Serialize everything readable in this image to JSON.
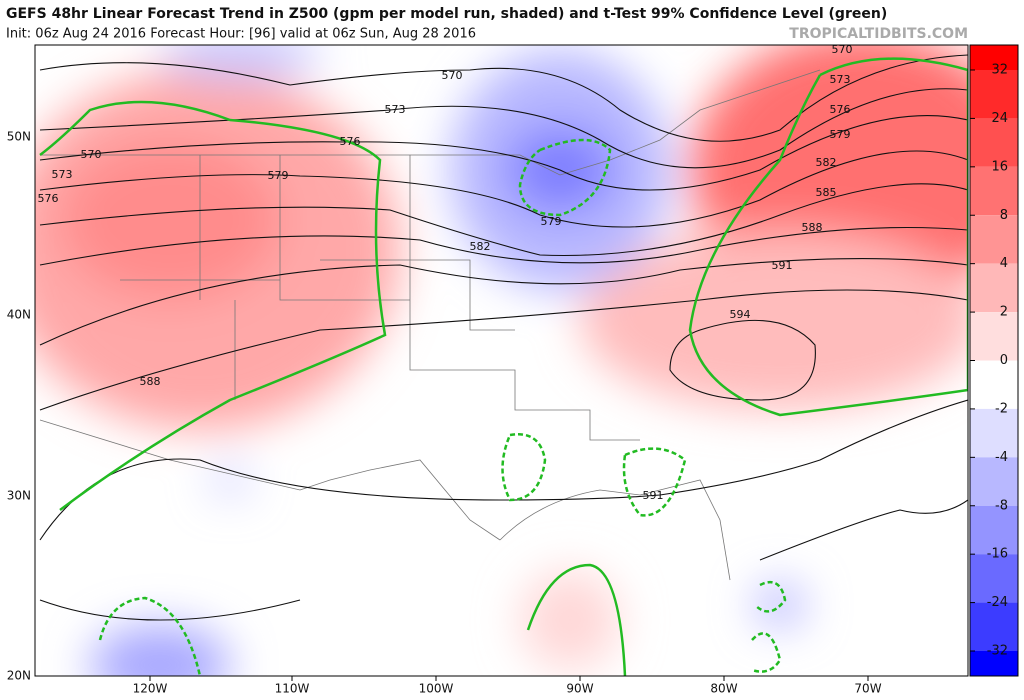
{
  "header": {
    "title": "GEFS 48hr Linear Forecast Trend in Z500 (gpm per model run, shaded) and t-Test 99% Confidence Level (green)",
    "subtitle": "Init: 06z Aug 24 2016   Forecast Hour: [96]   valid at 06z Sun, Aug 28 2016",
    "watermark": "TROPICALTIDBITS.COM"
  },
  "map": {
    "lat_labels": [
      "50N",
      "40N",
      "30N",
      "20N"
    ],
    "lon_labels": [
      "120W",
      "110W",
      "100W",
      "90W",
      "80W",
      "70W"
    ],
    "contour_labels": [
      "570",
      "573",
      "576",
      "579",
      "570",
      "573",
      "576",
      "582",
      "579",
      "588",
      "570",
      "573",
      "576",
      "579",
      "582",
      "585",
      "588",
      "591",
      "594",
      "591"
    ]
  },
  "colorbar": {
    "ticks": [
      32,
      24,
      16,
      8,
      4,
      2,
      0,
      -2,
      -4,
      -8,
      -16,
      -24,
      -32
    ],
    "colors": [
      "#ff0000",
      "#ff2a2a",
      "#ff5050",
      "#ff7272",
      "#ff9494",
      "#ffb8b8",
      "#ffdede",
      "#ffffff",
      "#dedeff",
      "#b8b8ff",
      "#9494ff",
      "#6a6aff",
      "#3c3cff",
      "#0000ff"
    ]
  }
}
